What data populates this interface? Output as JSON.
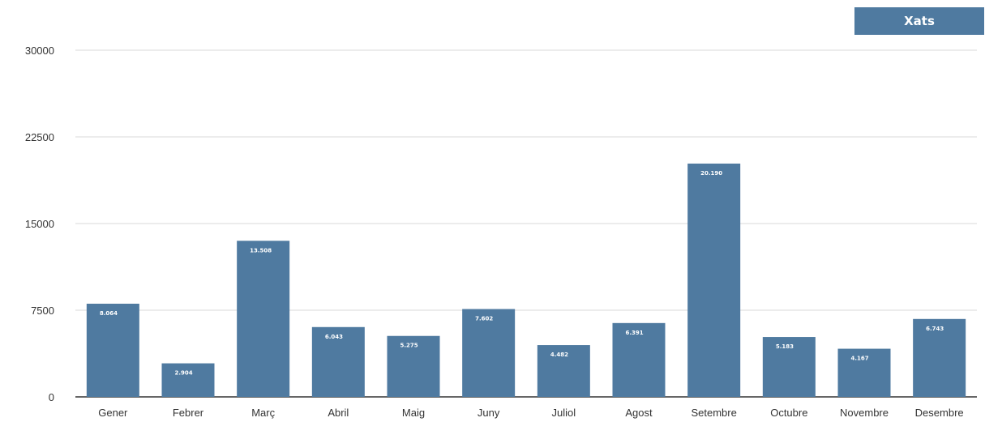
{
  "chart_data": {
    "type": "bar",
    "categories": [
      "Gener",
      "Febrer",
      "Març",
      "Abril",
      "Maig",
      "Juny",
      "Juliol",
      "Agost",
      "Setembre",
      "Octubre",
      "Novembre",
      "Desembre"
    ],
    "series": [
      {
        "name": "Xats",
        "values": [
          8064,
          2904,
          13508,
          6043,
          5275,
          7602,
          4482,
          6391,
          20190,
          5183,
          4167,
          6743
        ],
        "labels": [
          "8.064",
          "2.904",
          "13.508",
          "6.043",
          "5.275",
          "7.602",
          "4.482",
          "6.391",
          "20.190",
          "5.183",
          "4.167",
          "6.743"
        ]
      }
    ],
    "yticks": [
      "0",
      "7500",
      "15000",
      "22500",
      "30000"
    ],
    "ylim": [
      0,
      30000
    ],
    "grid": true,
    "legend": "top-right",
    "colors": {
      "bar": "#4f7aa0",
      "grid": "#e6e6e6",
      "axis": "#333333"
    }
  }
}
